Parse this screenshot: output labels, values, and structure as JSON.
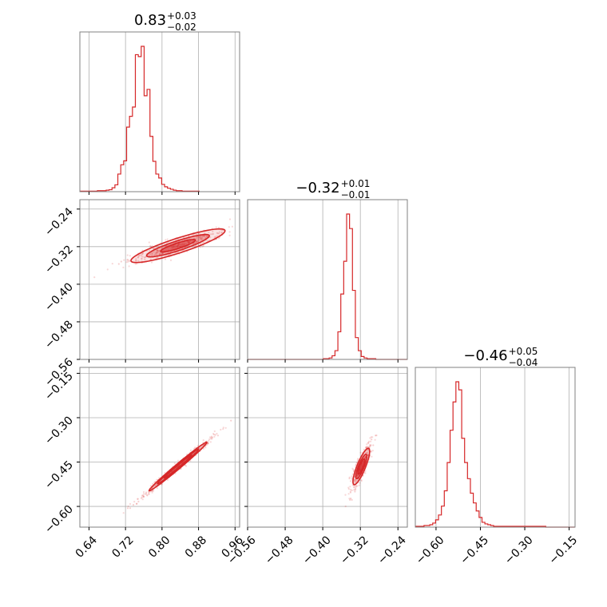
{
  "chart_data": {
    "type": "corner",
    "colors": {
      "series": "#d62728",
      "grid": "#b0b0b0",
      "frame": "#808080"
    },
    "grid": true,
    "parameters": [
      {
        "range": [
          0.62,
          0.97
        ],
        "ticks": [
          0.64,
          0.72,
          0.8,
          0.88,
          0.96
        ],
        "tick_labels": [
          "0.64",
          "0.72",
          "0.80",
          "0.88",
          "0.96"
        ]
      },
      {
        "range": [
          -0.56,
          -0.22
        ],
        "ticks": [
          -0.56,
          -0.48,
          -0.4,
          -0.32,
          -0.24
        ],
        "tick_labels": [
          "−0.56",
          "−0.48",
          "−0.40",
          "−0.32",
          "−0.24"
        ]
      },
      {
        "range": [
          -0.67,
          -0.13
        ],
        "ticks": [
          -0.6,
          -0.45,
          -0.3,
          -0.15
        ],
        "tick_labels": [
          "−0.60",
          "−0.45",
          "−0.30",
          "−0.15"
        ]
      }
    ],
    "titles": [
      {
        "value": "0.83",
        "plus": "+0.03",
        "minus": "−0.02"
      },
      {
        "value": "−0.32",
        "plus": "+0.01",
        "minus": "−0.01"
      },
      {
        "value": "−0.46",
        "plus": "+0.05",
        "minus": "−0.04"
      }
    ],
    "histograms": [
      {
        "bin_start": 0.62,
        "bin_width": 0.0064,
        "counts": [
          1,
          1,
          1,
          1,
          1,
          1,
          2,
          2,
          2,
          3,
          4,
          8,
          14,
          36,
          55,
          63,
          132,
          154,
          173,
          280,
          276,
          297,
          196,
          209,
          113,
          62,
          36,
          28,
          15,
          10,
          7,
          5,
          3,
          2,
          2,
          1,
          1,
          1,
          1,
          1,
          1
        ]
      },
      {
        "bin_start": -0.56,
        "bin_width": 0.0062,
        "counts": [
          0,
          0,
          0,
          0,
          0,
          0,
          0,
          0,
          0,
          0,
          0,
          0,
          0,
          0,
          0,
          0,
          0,
          0,
          0,
          0,
          0,
          0,
          0,
          0,
          0,
          0,
          1,
          1,
          2,
          5,
          12,
          38,
          90,
          135,
          200,
          180,
          95,
          30,
          12,
          4,
          2,
          1,
          1,
          1,
          0,
          0,
          0,
          0,
          0,
          0,
          0,
          0,
          0,
          0,
          0
        ]
      },
      {
        "bin_start": -0.67,
        "bin_width": 0.0098,
        "counts": [
          1,
          1,
          1,
          2,
          2,
          3,
          5,
          9,
          15,
          26,
          45,
          80,
          120,
          155,
          180,
          170,
          110,
          80,
          60,
          42,
          30,
          20,
          12,
          6,
          4,
          3,
          2,
          1,
          1,
          1,
          1,
          1,
          1,
          1,
          1,
          1,
          1,
          1,
          1,
          1,
          1,
          1,
          1,
          1,
          1,
          0,
          0,
          0,
          0,
          0,
          0,
          0,
          0,
          0,
          0
        ]
      }
    ],
    "pairs": [
      {
        "x_param": 0,
        "y_param": 1,
        "center": [
          0.835,
          -0.318
        ],
        "axis_angle_deg": 18,
        "half_lengths": [
          0.04,
          0.006
        ],
        "levels": [
          1.0,
          1.8,
          2.7
        ]
      },
      {
        "x_param": 0,
        "y_param": 2,
        "center": [
          0.835,
          -0.465
        ],
        "axis_angle_deg": 40,
        "half_lengths": [
          0.045,
          0.004
        ],
        "levels": [
          1.0,
          1.5,
          2.1
        ]
      },
      {
        "x_param": 1,
        "y_param": 2,
        "center": [
          -0.318,
          -0.465
        ],
        "axis_angle_deg": 68,
        "half_lengths": [
          0.025,
          0.006
        ],
        "levels": [
          1.0,
          1.6,
          2.4
        ]
      }
    ],
    "layout": "lower-triangle"
  }
}
